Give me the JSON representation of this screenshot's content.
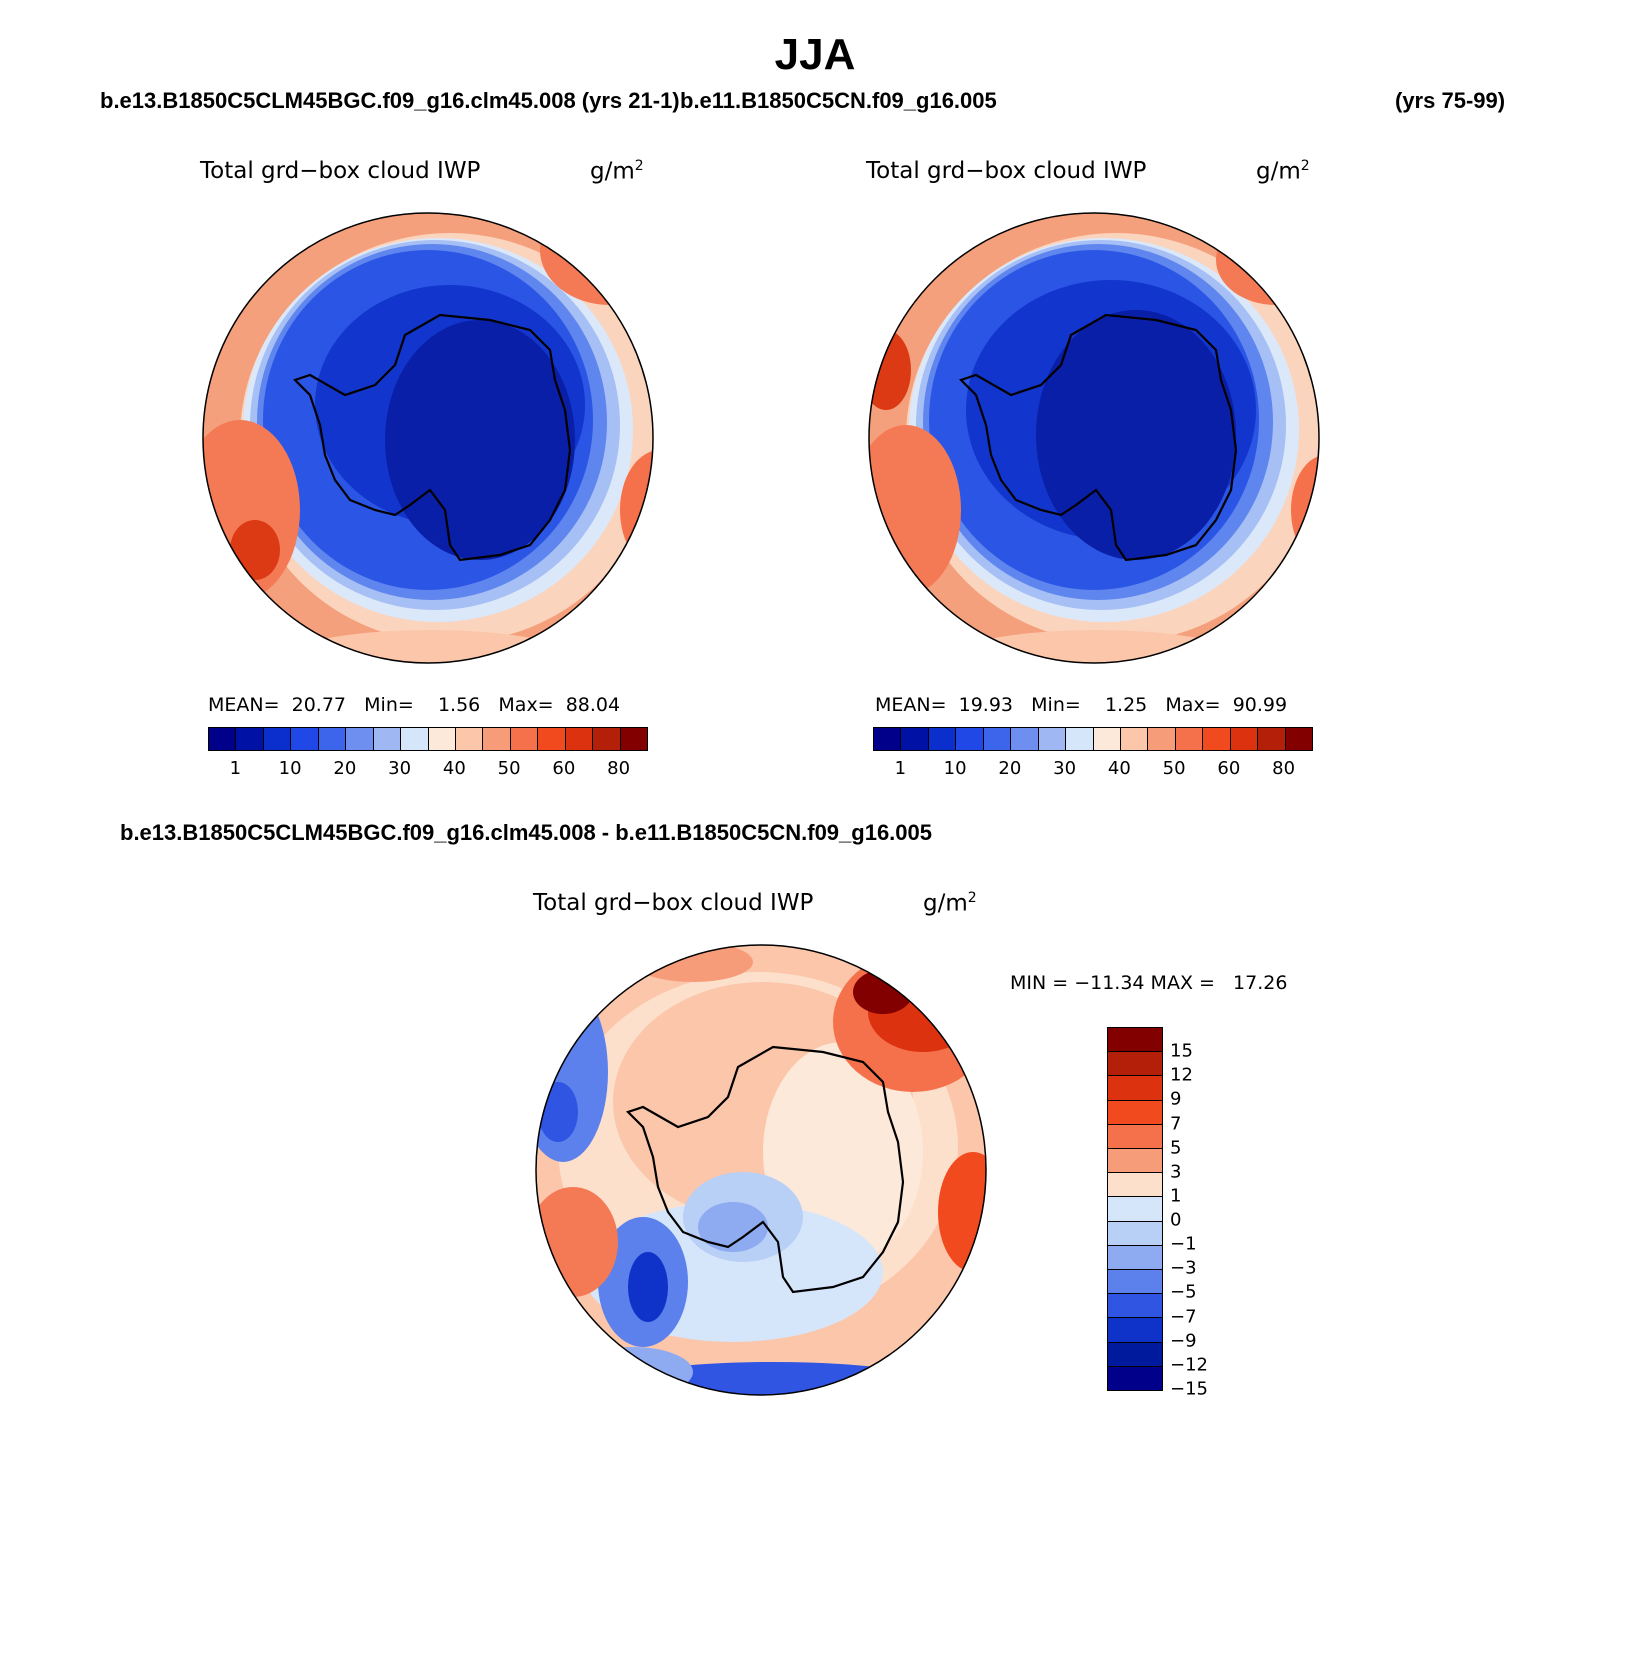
{
  "season": "JJA",
  "header": {
    "case1": "b.e13.B1850C5CLM45BGC.f09_g16.clm45.008 (yrs 21-1)",
    "case2": "b.e11.B1850C5CN.f09_g16.005",
    "case2_years": "(yrs 75-99)"
  },
  "panel1": {
    "title": "Total grd−box cloud IWP",
    "unit": "g/m",
    "unit_sup": "2",
    "mean_label": "MEAN=",
    "mean": "20.77",
    "min_label": "Min=",
    "min": "1.56",
    "max_label": "Max=",
    "max": "88.04"
  },
  "panel2": {
    "title": "Total grd−box cloud IWP",
    "unit": "g/m",
    "unit_sup": "2",
    "mean_label": "MEAN=",
    "mean": "19.93",
    "min_label": "Min=",
    "min": "1.25",
    "max_label": "Max=",
    "max": "90.99"
  },
  "diff": {
    "heading": "b.e13.B1850C5CLM45BGC.f09_g16.clm45.008 - b.e11.B1850C5CN.f09_g16.005",
    "title": "Total grd−box cloud IWP",
    "unit": "g/m",
    "unit_sup": "2",
    "minmax": "MIN = −11.34 MAX =   17.26"
  },
  "colorbar_abs": {
    "colors": [
      "#00008b",
      "#0011a6",
      "#0a2fcc",
      "#1f48e6",
      "#3d65ec",
      "#6e8ff0",
      "#9fb8f4",
      "#d6e6fa",
      "#fde9d9",
      "#fbc6aa",
      "#f79c78",
      "#f5714b",
      "#f24a1f",
      "#dc3210",
      "#b41f0a",
      "#820000"
    ],
    "tick_labels": [
      "1",
      "10",
      "20",
      "30",
      "40",
      "50",
      "60",
      "80"
    ]
  },
  "colorbar_diff": {
    "colors": [
      "#820000",
      "#b41f0a",
      "#dc3210",
      "#f24a1f",
      "#f5714b",
      "#f79c78",
      "#fde0cc",
      "#d6e6fa",
      "#b8cff6",
      "#8eaaf1",
      "#5c80ec",
      "#2f55e2",
      "#0f33c8",
      "#001a9e",
      "#00008b"
    ],
    "tick_labels": [
      "15",
      "12",
      "9",
      "7",
      "5",
      "3",
      "1",
      "0",
      "−1",
      "−3",
      "−5",
      "−7",
      "−9",
      "−12",
      "−15"
    ]
  }
}
